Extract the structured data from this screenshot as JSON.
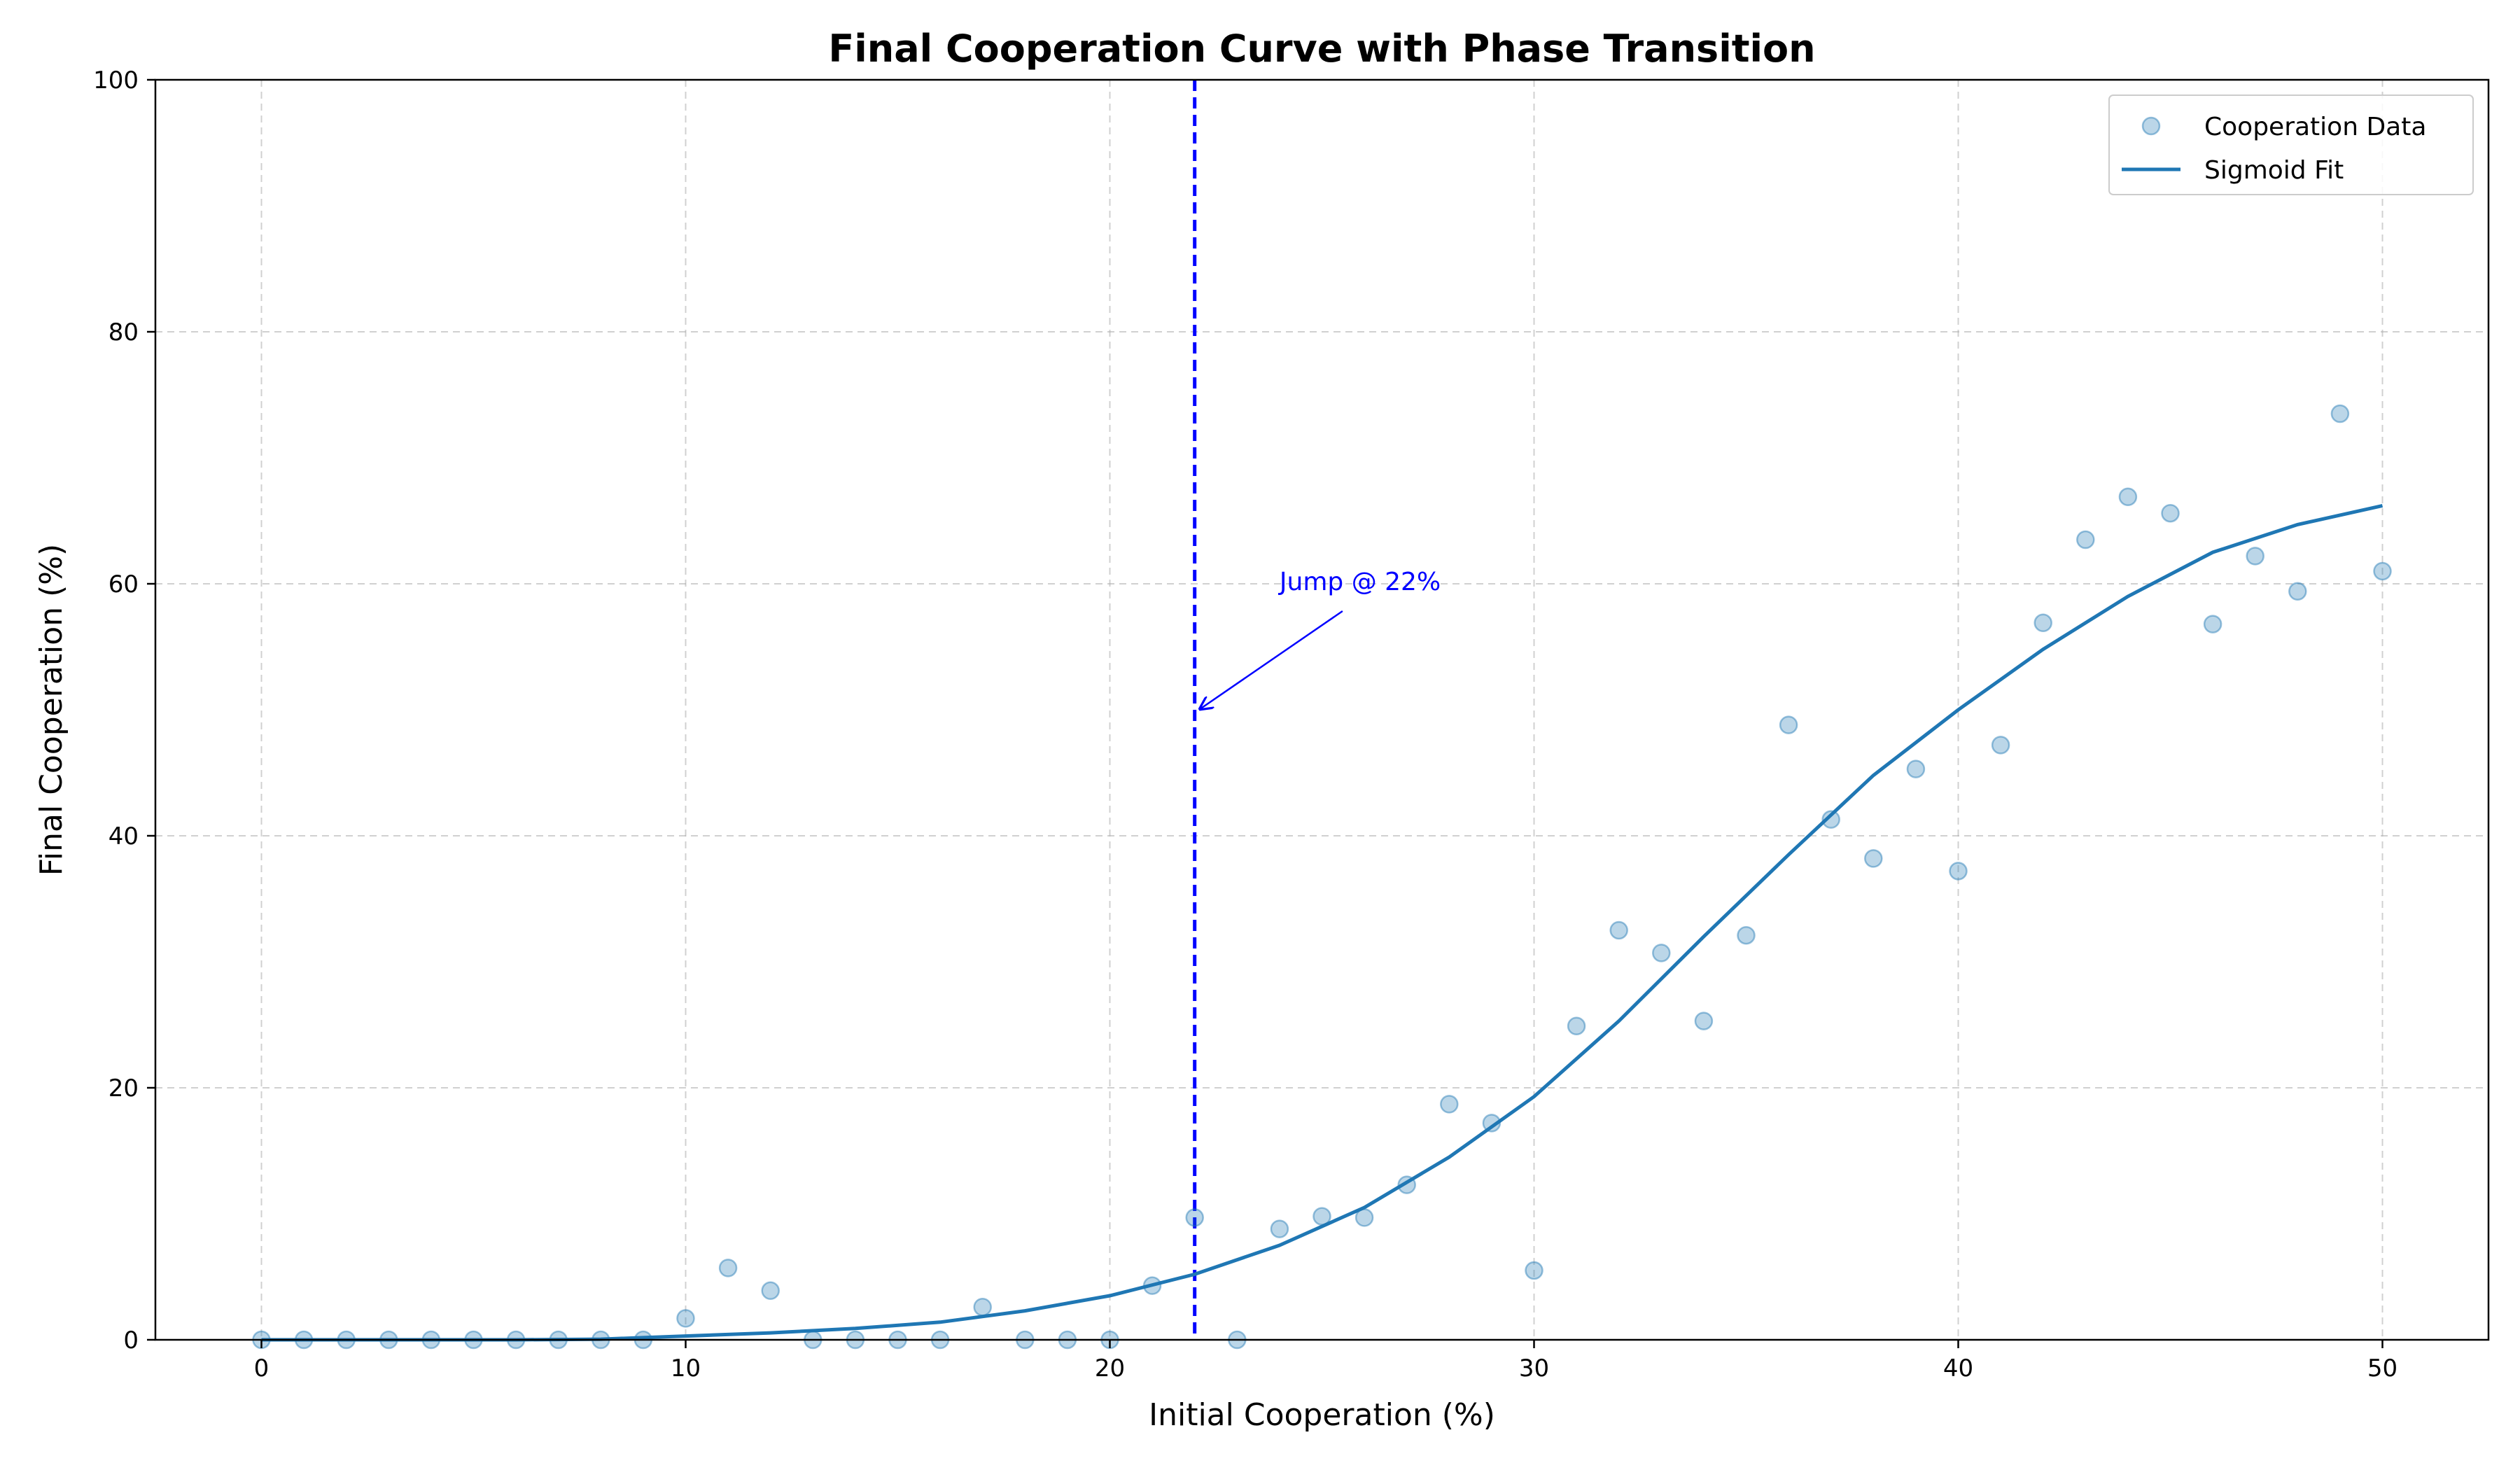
{
  "chart_data": {
    "type": "scatter",
    "title": "Final Cooperation Curve with Phase Transition",
    "xlabel": "Initial Cooperation (%)",
    "ylabel": "Final Cooperation (%)",
    "xlim": [
      -2.5,
      52.5
    ],
    "ylim": [
      0,
      100
    ],
    "xticks": [
      0,
      10,
      20,
      30,
      40,
      50
    ],
    "yticks": [
      0,
      20,
      40,
      60,
      80,
      100
    ],
    "grid": true,
    "legend_position": "top-right",
    "series": [
      {
        "name": "Cooperation Data",
        "kind": "scatter",
        "color": "#1f77b4",
        "x": [
          0,
          1,
          2,
          3,
          4,
          5,
          6,
          7,
          8,
          9,
          10,
          11,
          12,
          13,
          14,
          15,
          16,
          17,
          18,
          19,
          20,
          21,
          22,
          23,
          24,
          25,
          26,
          27,
          28,
          29,
          30,
          31,
          32,
          33,
          34,
          35,
          36,
          37,
          38,
          39,
          40,
          41,
          42,
          43,
          44,
          45,
          46,
          47,
          48,
          49,
          50
        ],
        "y": [
          0,
          0,
          0,
          0,
          0,
          0,
          0,
          0,
          0,
          0,
          1.7,
          5.7,
          3.9,
          0,
          0,
          0,
          0,
          2.6,
          0,
          0,
          0,
          4.3,
          9.7,
          0,
          8.8,
          9.8,
          9.7,
          12.3,
          18.7,
          17.2,
          5.5,
          24.9,
          32.5,
          30.7,
          25.3,
          32.1,
          48.8,
          41.3,
          38.2,
          45.3,
          37.2,
          47.2,
          56.9,
          63.5,
          66.9,
          65.6,
          56.8,
          62.2,
          59.4,
          73.5,
          61
        ]
      },
      {
        "name": "Sigmoid Fit",
        "kind": "line",
        "color": "#1f77b4",
        "x": [
          0,
          2,
          4,
          6,
          8,
          10,
          12,
          14,
          16,
          18,
          20,
          22,
          24,
          26,
          28,
          30,
          32,
          34,
          36,
          38,
          40,
          42,
          44,
          46,
          48,
          50
        ],
        "y": [
          0,
          0,
          0,
          0,
          0.05,
          0.3,
          0.55,
          0.9,
          1.4,
          2.3,
          3.5,
          5.2,
          7.5,
          10.5,
          14.5,
          19.3,
          25.3,
          32,
          38.5,
          44.8,
          50,
          54.8,
          59,
          62.5,
          64.7,
          66.2
        ]
      }
    ],
    "vline": {
      "x": 22,
      "color": "#0000ff",
      "style": "dashed"
    },
    "annotation": {
      "text": "Jump @ 22%",
      "text_x": 24,
      "text_y": 59.5,
      "arrow_x": 22,
      "arrow_y": 50,
      "color": "#0000ff"
    }
  }
}
